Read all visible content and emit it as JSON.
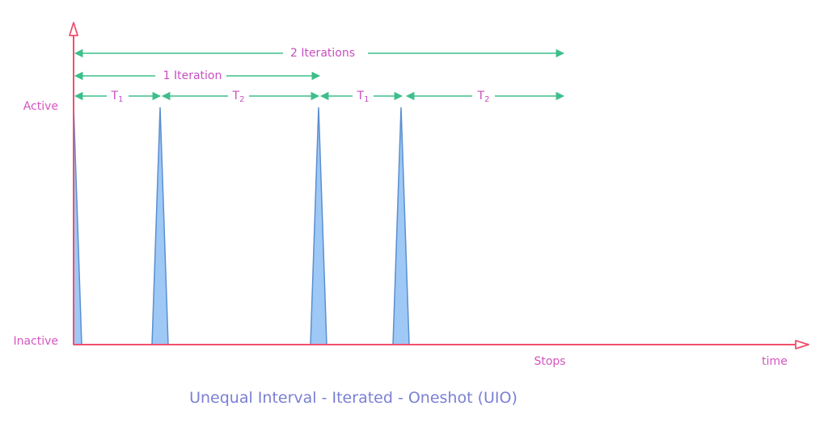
{
  "axes": {
    "y_active_label": "Active",
    "y_inactive_label": "Inactive",
    "x_label": "time",
    "stop_label": "Stops"
  },
  "spans": {
    "two_iterations": "2 Iterations",
    "one_iteration": "1 Iteration",
    "t1_label": "T",
    "t1_sub": "1",
    "t2_label": "T",
    "t2_sub": "2"
  },
  "caption": "Unequal Interval - Iterated - Oneshot (UIO)",
  "colors": {
    "axis": "#f0506e",
    "span_arrow": "#3dbf8a",
    "pulse_fill": "#9ec8f5",
    "pulse_stroke": "#5b8fcf",
    "axis_text": "#d455c0",
    "caption": "#7a7fd4"
  }
}
